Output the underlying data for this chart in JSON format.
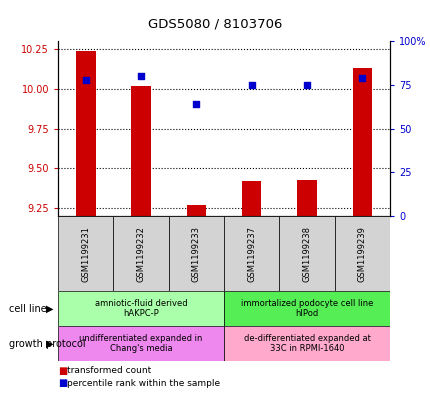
{
  "title": "GDS5080 / 8103706",
  "samples": [
    "GSM1199231",
    "GSM1199232",
    "GSM1199233",
    "GSM1199237",
    "GSM1199238",
    "GSM1199239"
  ],
  "transformed_counts": [
    10.24,
    10.02,
    9.27,
    9.42,
    9.43,
    10.13
  ],
  "percentile_ranks": [
    78,
    80,
    64,
    75,
    75,
    79
  ],
  "ylim_left": [
    9.2,
    10.3
  ],
  "ylim_right": [
    0,
    100
  ],
  "yticks_left": [
    9.25,
    9.5,
    9.75,
    10.0,
    10.25
  ],
  "yticks_right": [
    0,
    25,
    50,
    75,
    100
  ],
  "cell_line_groups": [
    {
      "label": "amniotic-fluid derived\nhAKPC-P",
      "start": 0,
      "end": 3,
      "color": "#aaffaa"
    },
    {
      "label": "immortalized podocyte cell line\nhIPod",
      "start": 3,
      "end": 6,
      "color": "#55ee55"
    }
  ],
  "growth_protocol_groups": [
    {
      "label": "undifferentiated expanded in\nChang's media",
      "start": 0,
      "end": 3,
      "color": "#ee88ee"
    },
    {
      "label": "de-differentiated expanded at\n33C in RPMI-1640",
      "start": 3,
      "end": 6,
      "color": "#ffaacc"
    }
  ],
  "bar_color": "#cc0000",
  "dot_color": "#0000cc",
  "bar_width": 0.35,
  "label_color_left": "#cc0000",
  "label_color_right": "#0000cc",
  "cell_line_label": "cell line",
  "growth_protocol_label": "growth protocol",
  "legend_items": [
    {
      "label": "transformed count",
      "color": "#cc0000"
    },
    {
      "label": "percentile rank within the sample",
      "color": "#0000cc"
    }
  ]
}
